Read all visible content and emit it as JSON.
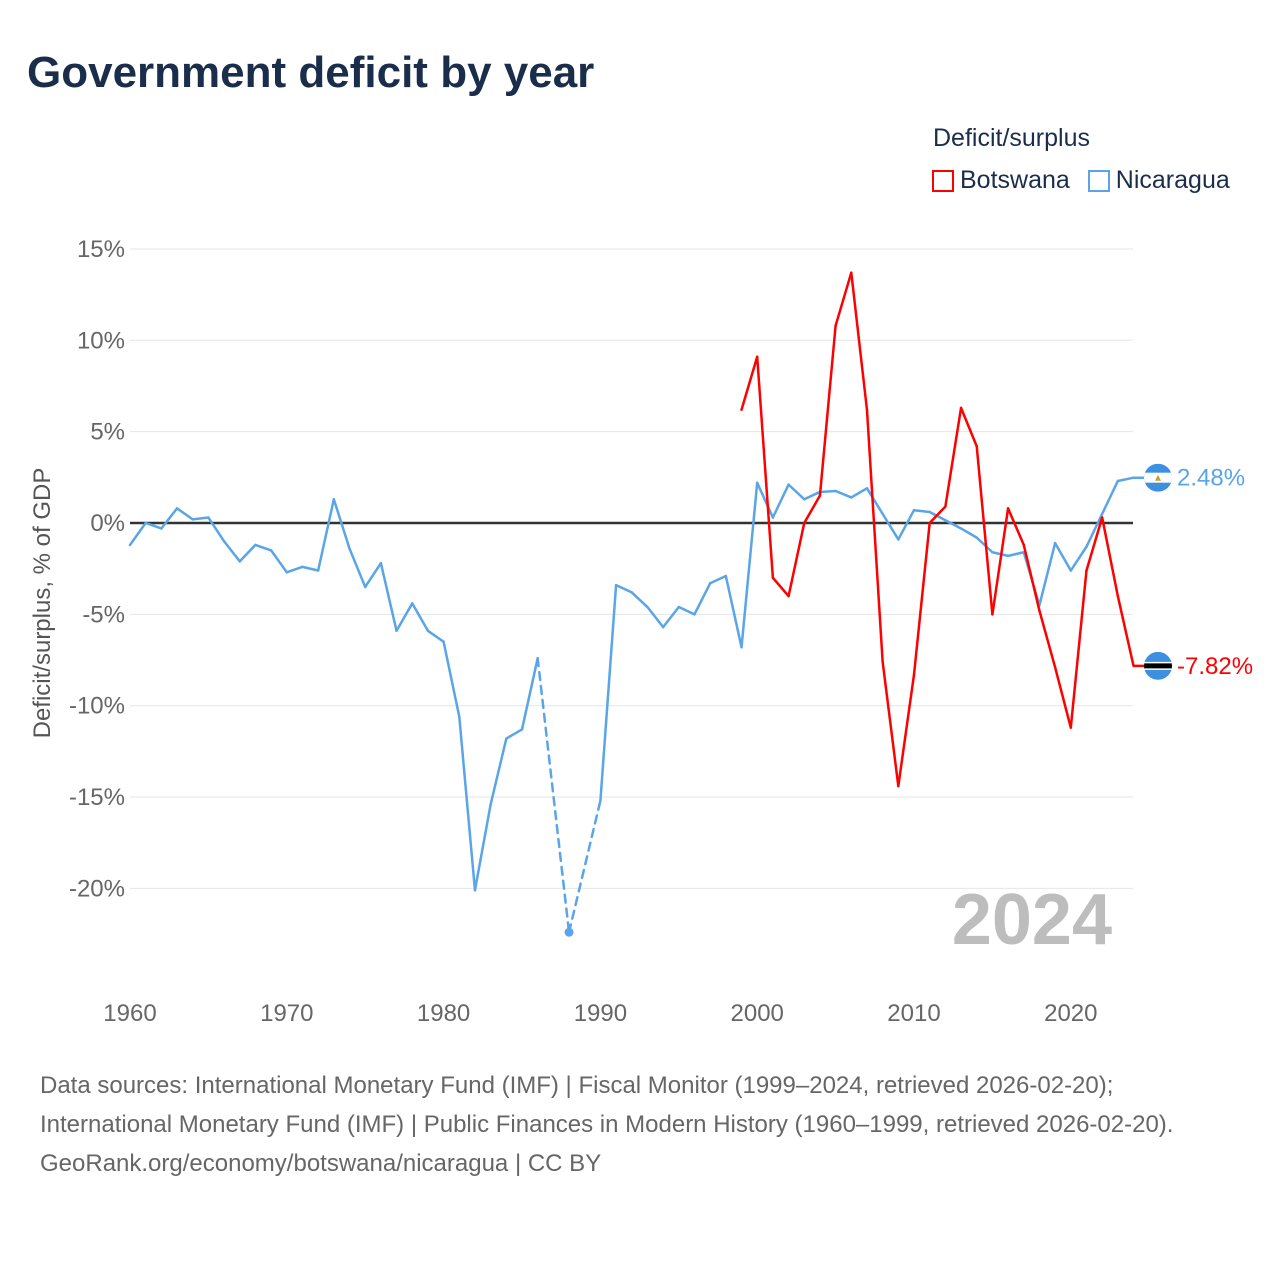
{
  "title": "Government deficit by year",
  "legend": {
    "title": "Deficit/surplus",
    "items": [
      {
        "name": "Botswana",
        "color": "#ff0000"
      },
      {
        "name": "Nicaragua",
        "color": "#5aa5e8"
      }
    ]
  },
  "year_label": "2024",
  "footer": {
    "sources": "Data sources: International Monetary Fund (IMF) | Fiscal Monitor (1999–2024, retrieved 2026-02-20); International Monetary Fund (IMF) | Public Finances in Modern History (1960–1999, retrieved 2026-02-20).",
    "credit": "GeoRank.org/economy/botswana/nicaragua | CC BY"
  },
  "chart_data": {
    "type": "line",
    "title": "Government deficit by year",
    "xlabel": "",
    "ylabel": "Deficit/surplus, % of GDP",
    "xlim": [
      1960,
      2024
    ],
    "ylim": [
      -25,
      15
    ],
    "xticks": [
      1960,
      1970,
      1980,
      1990,
      2000,
      2010,
      2020
    ],
    "xtick_labels": [
      "1960",
      "1970",
      "1980",
      "1990",
      "2000",
      "2010",
      "2020"
    ],
    "yticks": [
      15,
      10,
      5,
      0,
      -5,
      -10,
      -15,
      -20
    ],
    "ytick_labels": [
      "15%",
      "10%",
      "5%",
      "0%",
      "-5%",
      "-10%",
      "-15%",
      "-20%"
    ],
    "grid": true,
    "legend_position": "top-right",
    "series": [
      {
        "name": "Nicaragua",
        "color": "#5aa5e8",
        "end_label": "2.48%",
        "x": [
          1960,
          1961,
          1962,
          1963,
          1964,
          1965,
          1966,
          1967,
          1968,
          1969,
          1970,
          1971,
          1972,
          1973,
          1974,
          1975,
          1976,
          1977,
          1978,
          1979,
          1980,
          1981,
          1982,
          1983,
          1984,
          1985,
          1986,
          1987,
          1988,
          1989,
          1990,
          1991,
          1992,
          1993,
          1994,
          1995,
          1996,
          1997,
          1998,
          1999,
          2000,
          2001,
          2002,
          2003,
          2004,
          2005,
          2006,
          2007,
          2008,
          2009,
          2010,
          2011,
          2012,
          2013,
          2014,
          2015,
          2016,
          2017,
          2018,
          2019,
          2020,
          2021,
          2022,
          2023,
          2024
        ],
        "values": [
          -1.2,
          0,
          -0.3,
          0.8,
          0.2,
          0.3,
          -1.0,
          -2.1,
          -1.2,
          -1.5,
          -2.7,
          -2.4,
          -2.6,
          1.3,
          -1.4,
          -3.5,
          -2.2,
          -5.9,
          -4.4,
          -5.9,
          -6.5,
          -10.6,
          -20.1,
          -15.4,
          -11.8,
          -11.3,
          -7.4,
          null,
          -22.4,
          null,
          -15.2,
          -3.4,
          -3.8,
          -4.6,
          -5.7,
          -4.6,
          -5.0,
          -3.3,
          -2.9,
          -6.8,
          2.2,
          0.3,
          2.1,
          1.3,
          1.7,
          1.75,
          1.4,
          1.9,
          0.5,
          -0.9,
          0.7,
          0.6,
          0.15,
          -0.3,
          -0.8,
          -1.6,
          -1.8,
          -1.6,
          -4.5,
          -1.1,
          -2.6,
          -1.3,
          0.5,
          2.3,
          2.48
        ]
      },
      {
        "name": "Botswana",
        "color": "#ff0000",
        "end_label": "-7.82%",
        "x": [
          1999,
          2000,
          2001,
          2002,
          2003,
          2004,
          2005,
          2006,
          2007,
          2008,
          2009,
          2010,
          2011,
          2012,
          2013,
          2014,
          2015,
          2016,
          2017,
          2018,
          2019,
          2020,
          2021,
          2022,
          2023,
          2024
        ],
        "values": [
          6.2,
          9.1,
          -3.0,
          -4.0,
          0,
          1.5,
          10.8,
          13.7,
          6.2,
          -7.6,
          -14.4,
          -8.3,
          0,
          0.9,
          6.3,
          4.2,
          -5.0,
          0.8,
          -1.2,
          -4.8,
          -7.9,
          -11.2,
          -2.6,
          0.3,
          -4.0,
          -7.82
        ]
      }
    ]
  }
}
